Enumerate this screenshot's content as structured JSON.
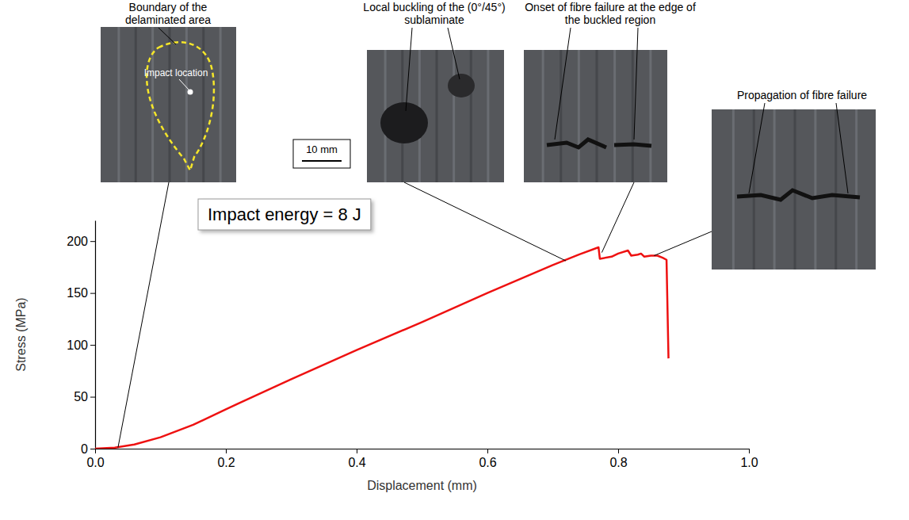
{
  "chart_data": {
    "type": "line",
    "x_label": "Displacement (mm)",
    "y_label": "Stress (MPa)",
    "xlim": [
      0,
      1
    ],
    "ylim": [
      0,
      220
    ],
    "xticks": [
      {
        "value": 0,
        "label": "0.0"
      },
      0.2,
      0.4,
      0.6,
      0.8,
      {
        "value": 1,
        "label": "1.0"
      }
    ],
    "yticks": [
      0,
      50,
      100,
      150,
      200
    ],
    "color": "#ee1111",
    "x": [
      0,
      0.03,
      0.06,
      0.1,
      0.15,
      0.2,
      0.3,
      0.4,
      0.5,
      0.6,
      0.7,
      0.74,
      0.77,
      0.772,
      0.79,
      0.8,
      0.815,
      0.82,
      0.83,
      0.835,
      0.84,
      0.85,
      0.86,
      0.868,
      0.874,
      0.877
    ],
    "values": [
      0,
      1,
      4,
      11,
      23,
      38,
      67,
      95,
      122,
      150,
      177,
      187,
      194,
      183,
      185,
      188,
      191,
      186,
      187,
      188,
      185,
      186,
      186,
      184,
      182,
      87
    ],
    "text_box": "Impact energy = 8 J",
    "scale_bar": "10 mm",
    "inset_label": "Impact location",
    "annotations": [
      {
        "text": "Boundary of the delaminated area",
        "x": 0.035,
        "y": 1
      },
      {
        "text": "Local buckling of the (0°/45°) sublaminate",
        "x": 0.72,
        "y": 181
      },
      {
        "text": "Onset of fibre failure at the edge of the buckled region",
        "x": 0.775,
        "y": 189
      },
      {
        "text": "Propagation of fibre failure",
        "x": 0.855,
        "y": 186
      }
    ]
  }
}
